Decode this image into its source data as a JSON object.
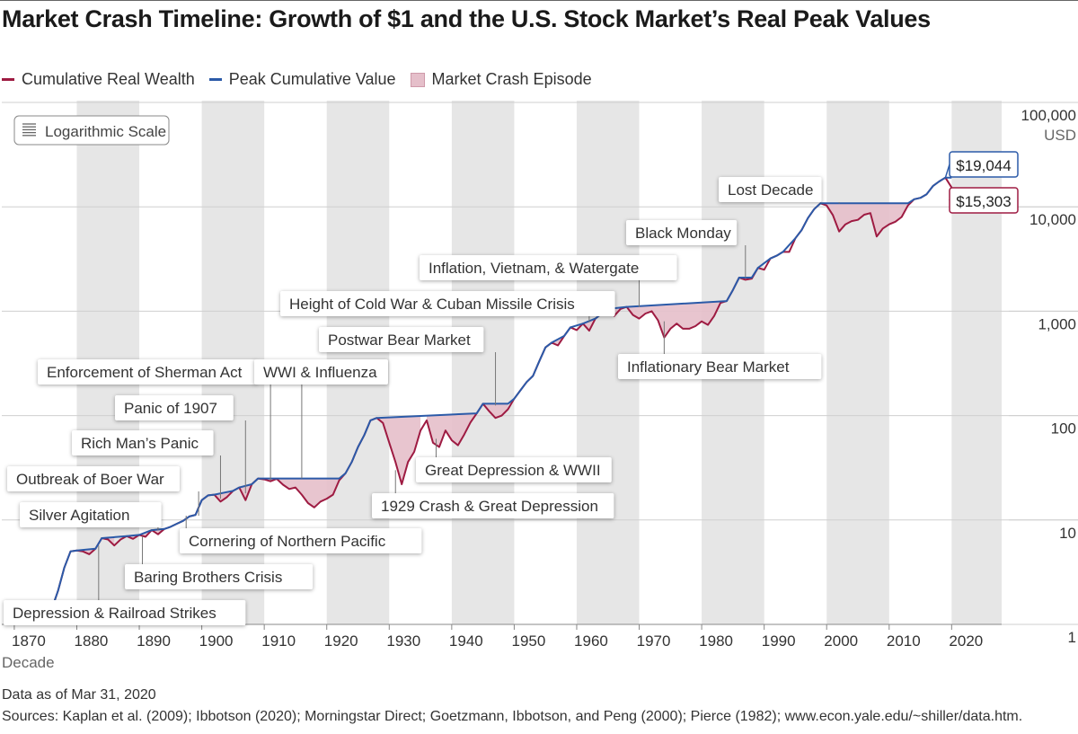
{
  "title": "Market Crash Timeline: Growth of $1 and the U.S. Stock Market’s Real Peak Values",
  "legend": {
    "items": [
      {
        "label": "Cumulative Real Wealth",
        "color": "#9e1b42"
      },
      {
        "label": "Peak Cumulative Value",
        "color": "#2b5aa8"
      },
      {
        "label": "Market Crash Episode",
        "color": "#e5bfca"
      }
    ]
  },
  "scale_button": {
    "label": "Logarithmic Scale",
    "icon": "list-icon"
  },
  "footer": {
    "data_as_of": "Data as of Mar 31, 2020",
    "sources": "Sources: Kaplan et al. (2009); Ibbotson (2020); Morningstar Direct; Goetzmann, Ibbotson, and Peng (2000); Pierce (1982); www.econ.yale.edu/~shiller/data.htm."
  },
  "chart_data": {
    "type": "line",
    "y_scale": "log",
    "ylim": [
      1,
      100000
    ],
    "xlim": [
      1868,
      2028
    ],
    "xlabel": "Decade",
    "yunit": "USD",
    "grid": true,
    "legend_placement": "top-left",
    "x_ticks": [
      1870,
      1880,
      1890,
      1900,
      1910,
      1920,
      1930,
      1940,
      1950,
      1960,
      1970,
      1980,
      1990,
      2000,
      2010,
      2020
    ],
    "y_ticks": [
      {
        "value": 1,
        "label": "1"
      },
      {
        "value": 10,
        "label": "10"
      },
      {
        "value": 100,
        "label": "100"
      },
      {
        "value": 1000,
        "label": "1,000"
      },
      {
        "value": 10000,
        "label": "10,000"
      },
      {
        "value": 100000,
        "label": "100,000"
      }
    ],
    "series": [
      {
        "name": "Cumulative Real Wealth",
        "color": "#9e1b42",
        "points": [
          [
            1871,
            1.0
          ],
          [
            1872,
            1.08
          ],
          [
            1873,
            1.12
          ],
          [
            1874,
            1.18
          ],
          [
            1875,
            1.15
          ],
          [
            1876,
            1.4
          ],
          [
            1877,
            2.1
          ],
          [
            1878,
            3.5
          ],
          [
            1879,
            5.0
          ],
          [
            1880,
            5.1
          ],
          [
            1881,
            5.0
          ],
          [
            1882,
            4.7
          ],
          [
            1883,
            5.3
          ],
          [
            1884,
            6.7
          ],
          [
            1885,
            6.5
          ],
          [
            1886,
            5.7
          ],
          [
            1887,
            6.5
          ],
          [
            1888,
            7.0
          ],
          [
            1889,
            6.6
          ],
          [
            1890,
            7.2
          ],
          [
            1891,
            6.9
          ],
          [
            1892,
            8.0
          ],
          [
            1893,
            7.3
          ],
          [
            1894,
            8.2
          ],
          [
            1895,
            8.6
          ],
          [
            1896,
            9.2
          ],
          [
            1897,
            9.8
          ],
          [
            1898,
            10.8
          ],
          [
            1899,
            11.2
          ],
          [
            1900,
            15.5
          ],
          [
            1901,
            17.2
          ],
          [
            1902,
            17.5
          ],
          [
            1903,
            15.0
          ],
          [
            1904,
            16.5
          ],
          [
            1905,
            19.0
          ],
          [
            1906,
            20.5
          ],
          [
            1907,
            15.5
          ],
          [
            1908,
            22.0
          ],
          [
            1909,
            25.0
          ],
          [
            1910,
            24.5
          ],
          [
            1911,
            23.5
          ],
          [
            1912,
            24.8
          ],
          [
            1913,
            21.8
          ],
          [
            1914,
            19.8
          ],
          [
            1915,
            20.5
          ],
          [
            1916,
            17.5
          ],
          [
            1917,
            14.5
          ],
          [
            1918,
            13.2
          ],
          [
            1919,
            15.0
          ],
          [
            1920,
            16.0
          ],
          [
            1921,
            17.5
          ],
          [
            1922,
            24.0
          ],
          [
            1923,
            28.0
          ],
          [
            1924,
            36.0
          ],
          [
            1925,
            50.0
          ],
          [
            1926,
            65.0
          ],
          [
            1927,
            90.0
          ],
          [
            1928,
            95.0
          ],
          [
            1929,
            85.0
          ],
          [
            1930,
            55.0
          ],
          [
            1931,
            36.0
          ],
          [
            1932,
            22.0
          ],
          [
            1933,
            36.0
          ],
          [
            1934,
            45.0
          ],
          [
            1935,
            72.0
          ],
          [
            1936,
            90.0
          ],
          [
            1937,
            55.0
          ],
          [
            1938,
            50.0
          ],
          [
            1939,
            72.0
          ],
          [
            1940,
            58.0
          ],
          [
            1941,
            52.0
          ],
          [
            1942,
            66.0
          ],
          [
            1943,
            86.0
          ],
          [
            1944,
            105.0
          ],
          [
            1945,
            130.0
          ],
          [
            1946,
            110.0
          ],
          [
            1947,
            95.0
          ],
          [
            1948,
            100.0
          ],
          [
            1949,
            115.0
          ],
          [
            1950,
            145.0
          ],
          [
            1951,
            175.0
          ],
          [
            1952,
            210.0
          ],
          [
            1953,
            240.0
          ],
          [
            1954,
            330.0
          ],
          [
            1955,
            450.0
          ],
          [
            1956,
            500.0
          ],
          [
            1957,
            470.0
          ],
          [
            1958,
            580.0
          ],
          [
            1959,
            700.0
          ],
          [
            1960,
            660.0
          ],
          [
            1961,
            760.0
          ],
          [
            1962,
            650.0
          ],
          [
            1963,
            850.0
          ],
          [
            1964,
            950.0
          ],
          [
            1965,
            1050.0
          ],
          [
            1966,
            900.0
          ],
          [
            1967,
            1050.0
          ],
          [
            1968,
            1100.0
          ],
          [
            1969,
            920.0
          ],
          [
            1970,
            850.0
          ],
          [
            1971,
            950.0
          ],
          [
            1972,
            1000.0
          ],
          [
            1973,
            820.0
          ],
          [
            1974,
            560.0
          ],
          [
            1975,
            680.0
          ],
          [
            1976,
            760.0
          ],
          [
            1977,
            680.0
          ],
          [
            1978,
            680.0
          ],
          [
            1979,
            720.0
          ],
          [
            1980,
            800.0
          ],
          [
            1981,
            740.0
          ],
          [
            1982,
            900.0
          ],
          [
            1983,
            1200.0
          ],
          [
            1984,
            1250.0
          ],
          [
            1985,
            1600.0
          ],
          [
            1986,
            2100.0
          ],
          [
            1987,
            2000.0
          ],
          [
            1988,
            2050.0
          ],
          [
            1989,
            2600.0
          ],
          [
            1990,
            2500.0
          ],
          [
            1991,
            3200.0
          ],
          [
            1992,
            3400.0
          ],
          [
            1993,
            3700.0
          ],
          [
            1994,
            3700.0
          ],
          [
            1995,
            5000.0
          ],
          [
            1996,
            6000.0
          ],
          [
            1997,
            7800.0
          ],
          [
            1998,
            9500.0
          ],
          [
            1999,
            10800.0
          ],
          [
            2000,
            10300.0
          ],
          [
            2001,
            8300.0
          ],
          [
            2002,
            5800.0
          ],
          [
            2003,
            6800.0
          ],
          [
            2004,
            7300.0
          ],
          [
            2005,
            7500.0
          ],
          [
            2006,
            8400.0
          ],
          [
            2007,
            8700.0
          ],
          [
            2008,
            5200.0
          ],
          [
            2009,
            6200.0
          ],
          [
            2010,
            6800.0
          ],
          [
            2011,
            7200.0
          ],
          [
            2012,
            8000.0
          ],
          [
            2013,
            10300.0
          ],
          [
            2014,
            11800.0
          ],
          [
            2015,
            12200.0
          ],
          [
            2016,
            13200.0
          ],
          [
            2017,
            15800.0
          ],
          [
            2018,
            17500.0
          ],
          [
            2019,
            19044.0
          ],
          [
            2020,
            15303.0
          ]
        ]
      },
      {
        "name": "Peak Cumulative Value",
        "color": "#2b5aa8",
        "points": [
          [
            1871,
            1.0
          ],
          [
            1872,
            1.08
          ],
          [
            1873,
            1.12
          ],
          [
            1874,
            1.18
          ],
          [
            1876,
            1.4
          ],
          [
            1877,
            2.1
          ],
          [
            1878,
            3.5
          ],
          [
            1879,
            5.0
          ],
          [
            1880,
            5.1
          ],
          [
            1883,
            5.3
          ],
          [
            1884,
            6.7
          ],
          [
            1888,
            7.0
          ],
          [
            1890,
            7.2
          ],
          [
            1892,
            8.0
          ],
          [
            1894,
            8.2
          ],
          [
            1895,
            8.6
          ],
          [
            1896,
            9.2
          ],
          [
            1897,
            9.8
          ],
          [
            1898,
            10.8
          ],
          [
            1899,
            11.2
          ],
          [
            1900,
            15.5
          ],
          [
            1901,
            17.2
          ],
          [
            1902,
            17.5
          ],
          [
            1905,
            19.0
          ],
          [
            1906,
            20.5
          ],
          [
            1908,
            22.0
          ],
          [
            1909,
            25.0
          ],
          [
            1921,
            25.0
          ],
          [
            1922,
            25.0
          ],
          [
            1923,
            28.0
          ],
          [
            1924,
            36.0
          ],
          [
            1925,
            50.0
          ],
          [
            1926,
            65.0
          ],
          [
            1927,
            90.0
          ],
          [
            1928,
            95.0
          ],
          [
            1944,
            105.0
          ],
          [
            1945,
            130.0
          ],
          [
            1949,
            130.0
          ],
          [
            1950,
            145.0
          ],
          [
            1951,
            175.0
          ],
          [
            1952,
            210.0
          ],
          [
            1953,
            240.0
          ],
          [
            1954,
            330.0
          ],
          [
            1955,
            450.0
          ],
          [
            1956,
            500.0
          ],
          [
            1958,
            580.0
          ],
          [
            1959,
            700.0
          ],
          [
            1961,
            760.0
          ],
          [
            1963,
            850.0
          ],
          [
            1964,
            950.0
          ],
          [
            1965,
            1050.0
          ],
          [
            1968,
            1100.0
          ],
          [
            1984,
            1250.0
          ],
          [
            1985,
            1600.0
          ],
          [
            1986,
            2100.0
          ],
          [
            1988,
            2100.0
          ],
          [
            1989,
            2600.0
          ],
          [
            1991,
            3200.0
          ],
          [
            1992,
            3400.0
          ],
          [
            1993,
            3700.0
          ],
          [
            1995,
            5000.0
          ],
          [
            1996,
            6000.0
          ],
          [
            1997,
            7800.0
          ],
          [
            1998,
            9500.0
          ],
          [
            1999,
            10800.0
          ],
          [
            2013,
            10800.0
          ],
          [
            2014,
            11800.0
          ],
          [
            2015,
            12200.0
          ],
          [
            2016,
            13200.0
          ],
          [
            2017,
            15800.0
          ],
          [
            2018,
            17500.0
          ],
          [
            2019,
            19044.0
          ],
          [
            2020,
            19044.0
          ]
        ]
      }
    ],
    "end_labels": {
      "peak": {
        "text": "$19,044",
        "value": 19044,
        "color": "#2b5aa8"
      },
      "current": {
        "text": "$15,303",
        "value": 15303,
        "color": "#9e1b42"
      }
    },
    "episodes": [
      {
        "start": 1879,
        "end": 1883
      },
      {
        "start": 1884,
        "end": 1886
      },
      {
        "start": 1888,
        "end": 1890
      },
      {
        "start": 1890,
        "end": 1892
      },
      {
        "start": 1892,
        "end": 1894
      },
      {
        "start": 1897,
        "end": 1898
      },
      {
        "start": 1902,
        "end": 1905
      },
      {
        "start": 1906,
        "end": 1908
      },
      {
        "start": 1909,
        "end": 1922
      },
      {
        "start": 1928,
        "end": 1935
      },
      {
        "start": 1936,
        "end": 1944
      },
      {
        "start": 1945,
        "end": 1949
      },
      {
        "start": 1956,
        "end": 1958
      },
      {
        "start": 1961,
        "end": 1963
      },
      {
        "start": 1965,
        "end": 1968
      },
      {
        "start": 1968,
        "end": 1984
      },
      {
        "start": 1986,
        "end": 1988
      },
      {
        "start": 1999,
        "end": 2013
      }
    ],
    "annotations": [
      {
        "text": "Depression & Railroad Strikes",
        "year": 1883.5,
        "value": 5.7,
        "position": "below"
      },
      {
        "text": "Baring Brothers Crisis",
        "year": 1890.5,
        "value": 7.0,
        "position": "below"
      },
      {
        "text": "Silver Agitation",
        "year": 1893,
        "value": 8.0,
        "position": "above"
      },
      {
        "text": "Outbreak of Boer War",
        "year": 1899.5,
        "value": 11.0,
        "position": "above"
      },
      {
        "text": "Cornering of Northern Pacific",
        "year": 1897.5,
        "value": 11.0,
        "position": "below"
      },
      {
        "text": "Rich Man’s Panic",
        "year": 1903,
        "value": 16.0,
        "position": "above"
      },
      {
        "text": "Panic of 1907",
        "year": 1907,
        "value": 18.0,
        "position": "above"
      },
      {
        "text": "Enforcement of Sherman Act",
        "year": 1911,
        "value": 24.0,
        "position": "above"
      },
      {
        "text": "WWI & Influenza",
        "year": 1916,
        "value": 25.0,
        "position": "above"
      },
      {
        "text": "1929 Crash & Great Depression",
        "year": 1931,
        "value": 30.0,
        "position": "below"
      },
      {
        "text": "Great Depression & WWII",
        "year": 1937.5,
        "value": 60.0,
        "position": "below"
      },
      {
        "text": "Postwar Bear Market",
        "year": 1947,
        "value": 125.0,
        "position": "above"
      },
      {
        "text": "Height of Cold War & Cuban Missile Crisis",
        "year": 1962,
        "value": 780.0,
        "position": "above"
      },
      {
        "text": "Inflation, Vietnam, & Watergate",
        "year": 1970,
        "value": 1100.0,
        "position": "above"
      },
      {
        "text": "Inflationary Bear Market",
        "year": 1974,
        "value": 800.0,
        "position": "below"
      },
      {
        "text": "Black Monday",
        "year": 1987,
        "value": 2100.0,
        "position": "above"
      },
      {
        "text": "Lost Decade",
        "year": 2002,
        "value": 10800.0,
        "position": "above"
      }
    ]
  }
}
